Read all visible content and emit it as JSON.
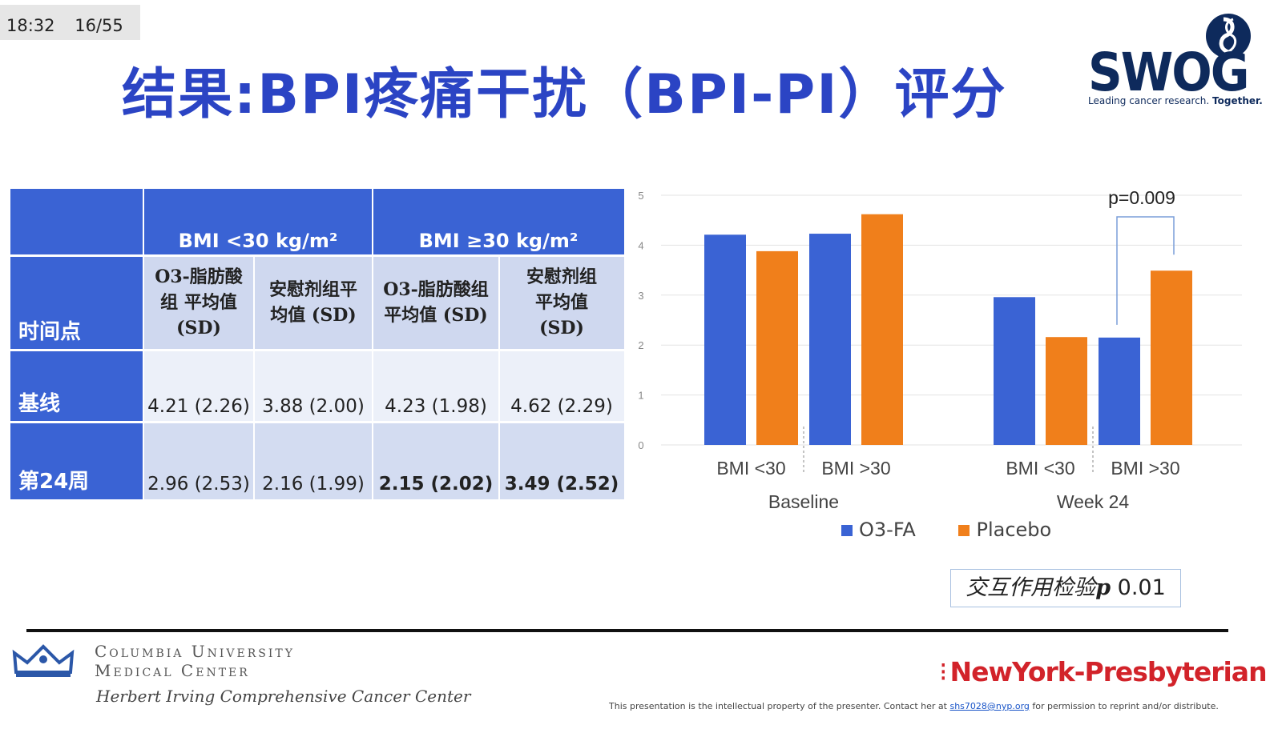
{
  "status": {
    "time": "18:32",
    "slide": "16/55"
  },
  "title": "结果:BPI疼痛干扰（BPI-PI）评分",
  "logo": {
    "name": "SWOG",
    "tagline_a": "Leading cancer research.",
    "tagline_b": "Together."
  },
  "table": {
    "group_headers": [
      "BMI <30 kg/m²",
      "BMI ≥30 kg/m²"
    ],
    "col_header_row_label": "时间点",
    "col_headers": [
      "O3-脂肪酸组 平均值 (SD)",
      "安慰剂组平均值 (SD)",
      "O3-脂肪酸组 平均值 (SD)",
      "安慰剂组平均值 (SD)"
    ],
    "rows": [
      {
        "label": "基线",
        "cells": [
          "4.21 (2.26)",
          "3.88 (2.00)",
          "4.23 (1.98)",
          "4.62 (2.29)"
        ]
      },
      {
        "label": "第24周",
        "cells": [
          "2.96 (2.53)",
          "2.16 (1.99)",
          "2.15 (2.02)",
          "3.49 (2.52)"
        ]
      }
    ]
  },
  "chart_data": {
    "type": "bar",
    "ylim": [
      0,
      5
    ],
    "yticks": [
      "0",
      "1",
      "2",
      "3",
      "4",
      "5"
    ],
    "groups": [
      {
        "label": "Baseline",
        "subgroups": [
          {
            "label": "BMI <30",
            "values": [
              4.21,
              3.88
            ]
          },
          {
            "label": "BMI >30",
            "values": [
              4.23,
              4.62
            ]
          }
        ]
      },
      {
        "label": "Week 24",
        "subgroups": [
          {
            "label": "BMI <30",
            "values": [
              2.96,
              2.16
            ]
          },
          {
            "label": "BMI >30",
            "values": [
              2.15,
              3.49
            ]
          }
        ]
      }
    ],
    "series": [
      {
        "name": "O3-FA",
        "color": "#3a63d4"
      },
      {
        "name": "Placebo",
        "color": "#f07f1b"
      }
    ],
    "annotation": "p=0.009",
    "grid": true,
    "legend": "bottom"
  },
  "interaction": {
    "text": "交互作用检验",
    "p": "p",
    "value": "0.01"
  },
  "footer": {
    "cu_line1": "Columbia University",
    "cu_line2": "Medical Center",
    "cu_line3": "Herbert Irving Comprehensive Cancer Center",
    "nyp": "NewYork-Presbyterian",
    "disclaimer_a": "This presentation is the intellectual property of the presenter. Contact her at",
    "disclaimer_email": "shs7028@nyp.org",
    "disclaimer_b": "for permission to reprint and/or distribute."
  }
}
